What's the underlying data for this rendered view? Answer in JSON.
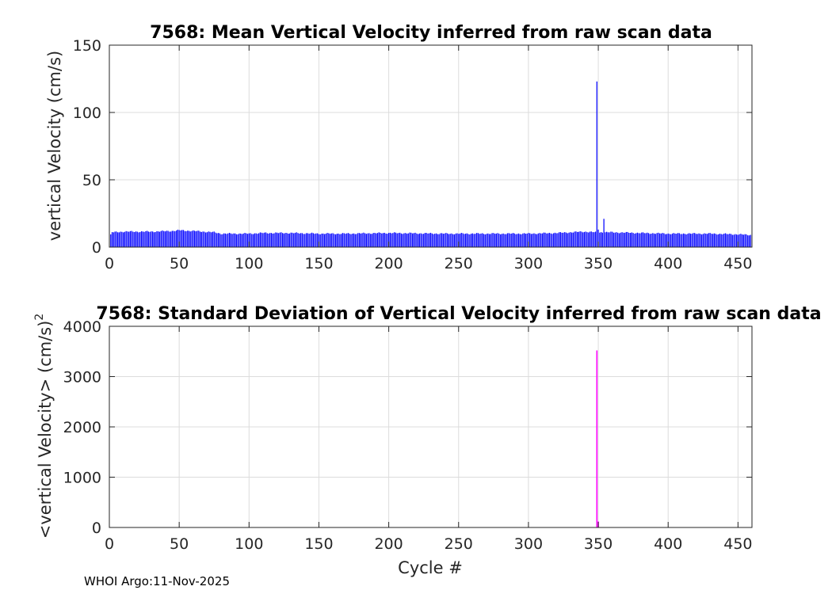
{
  "colors": {
    "top_bars": "#0000ff",
    "bottom_bars": "#ff00ff",
    "grid": "#dcdcdc",
    "axis": "#262626"
  },
  "footer": "WHOI Argo:11-Nov-2025",
  "chart_data": [
    {
      "type": "bar",
      "title": "7568: Mean Vertical Velocity inferred from raw scan data",
      "xlabel": "",
      "ylabel": "vertical Velocity (cm/s)",
      "xlim": [
        0,
        460
      ],
      "ylim": [
        0,
        150
      ],
      "xticks": [
        0,
        50,
        100,
        150,
        200,
        250,
        300,
        350,
        400,
        450
      ],
      "yticks": [
        0,
        50,
        100,
        150
      ],
      "grid": true,
      "baseline": {
        "x_range": [
          1,
          459
        ],
        "anchors": [
          [
            1,
            9
          ],
          [
            2,
            11
          ],
          [
            10,
            11.5
          ],
          [
            30,
            11.5
          ],
          [
            45,
            12
          ],
          [
            50,
            12.5
          ],
          [
            60,
            12
          ],
          [
            75,
            11
          ],
          [
            80,
            10
          ],
          [
            100,
            10
          ],
          [
            110,
            10.5
          ],
          [
            130,
            10.5
          ],
          [
            150,
            10
          ],
          [
            170,
            10
          ],
          [
            200,
            10.5
          ],
          [
            240,
            10
          ],
          [
            280,
            10
          ],
          [
            300,
            10
          ],
          [
            320,
            10.5
          ],
          [
            340,
            11.5
          ],
          [
            348,
            11
          ],
          [
            360,
            11
          ],
          [
            380,
            10.5
          ],
          [
            400,
            10
          ],
          [
            430,
            10
          ],
          [
            450,
            9.5
          ],
          [
            459,
            9
          ]
        ]
      },
      "overrides": [
        {
          "x": 349,
          "y": 123
        },
        {
          "x": 354,
          "y": 21
        },
        {
          "x": 350,
          "y": 13
        }
      ]
    },
    {
      "type": "bar",
      "title": "7568: Standard Deviation of Vertical Velocity inferred from raw scan data",
      "xlabel": "Cycle #",
      "ylabel": "<vertical Velocity> (cm/s)",
      "ylabel_superscript": "2",
      "xlim": [
        0,
        460
      ],
      "ylim": [
        0,
        4000
      ],
      "xticks": [
        0,
        50,
        100,
        150,
        200,
        250,
        300,
        350,
        400,
        450
      ],
      "yticks": [
        0,
        1000,
        2000,
        3000,
        4000
      ],
      "grid": true,
      "points": [
        {
          "x": 349,
          "y": 3520
        },
        {
          "x": 350,
          "y": 120
        }
      ]
    }
  ]
}
